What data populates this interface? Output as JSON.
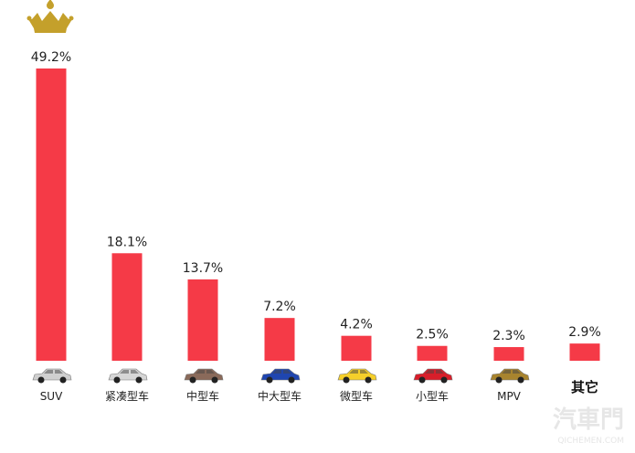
{
  "chart_data": {
    "type": "bar",
    "categories": [
      "SUV",
      "紧凑型车",
      "中型车",
      "中大型车",
      "微型车",
      "小型车",
      "MPV",
      "其它"
    ],
    "values": [
      49.2,
      18.1,
      13.7,
      7.2,
      4.2,
      2.5,
      2.3,
      2.9
    ],
    "value_labels": [
      "49.2%",
      "18.1%",
      "13.7%",
      "7.2%",
      "4.2%",
      "2.5%",
      "2.3%",
      "2.9%"
    ],
    "category_icons": [
      "silver-suv-icon",
      "silver-sedan-icon",
      "brown-sedan-icon",
      "blue-sedan-icon",
      "yellow-hatchback-icon",
      "red-hatchback-icon",
      "gold-mpv-icon",
      null
    ],
    "icon_colors": [
      "#cfcfcf",
      "#d6d6d6",
      "#8a6a5a",
      "#1f46b0",
      "#f5cf2a",
      "#d81e2a",
      "#a8842e",
      null
    ],
    "highlight_icon": "crown-icon",
    "bar_color": "#F53A47",
    "crown_color": "#C4A02B",
    "ylim": [
      0,
      50
    ],
    "grid": false,
    "legend": "none"
  },
  "watermark": {
    "cn": "汽車門",
    "en": "QICHEMEN.COM"
  }
}
